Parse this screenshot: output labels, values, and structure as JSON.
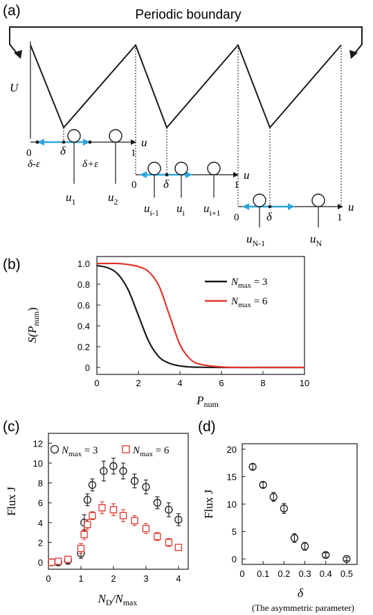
{
  "panel_a": {
    "label": "(a)",
    "title": "Periodic boundary",
    "ylabel": "U",
    "axis_u": "u",
    "zero": "0",
    "one": "1",
    "delta": "δ",
    "delta_minus": "δ-ε",
    "delta_plus": "δ+ε",
    "particles": [
      "u",
      "u",
      "u",
      "u",
      "u",
      "u",
      "u"
    ],
    "subscripts": [
      "1",
      "2",
      "i-1",
      "i",
      "i+1",
      "N-1",
      "N"
    ]
  },
  "panel_b": {
    "label": "(b)",
    "xlabel_main": "P",
    "xlabel_sub": "num",
    "ylabel_text": "S(P",
    "ylabel_sub": "num",
    "ylabel_close": ")",
    "legend": [
      "N",
      "N"
    ],
    "legend_sub": [
      "max",
      "max"
    ],
    "legend_val": [
      " = 3",
      " = 6"
    ]
  },
  "panel_c": {
    "label": "(c)",
    "ylabel": "Flux J",
    "xlabel_n1": "N",
    "xlabel_sub1": "D",
    "xlabel_slash": "/N",
    "xlabel_sub2": "max",
    "legend_n": [
      "N",
      "N"
    ],
    "legend_sub": [
      "max",
      "max"
    ],
    "legend_val": [
      " = 3",
      " = 6"
    ]
  },
  "panel_d": {
    "label": "(d)",
    "ylabel": "Flux J",
    "xlabel": "δ",
    "xnote": "(The asymmetric parameter)"
  },
  "colors": {
    "black": "#1a1a1a",
    "red": "#e0362c",
    "cyan": "#2ba6de"
  },
  "chart_data": [
    {
      "type": "line",
      "panel": "b",
      "x": [
        0,
        0.5,
        1,
        1.5,
        2,
        2.5,
        3,
        3.5,
        4,
        4.5,
        5,
        6,
        7,
        8,
        9,
        10
      ],
      "series": [
        {
          "name": "N_max = 3",
          "color": "#1a1a1a",
          "values": [
            0.98,
            0.96,
            0.9,
            0.75,
            0.5,
            0.25,
            0.1,
            0.04,
            0.015,
            0.005,
            0.002,
            0,
            0,
            0,
            0,
            0
          ]
        },
        {
          "name": "N_max = 6",
          "color": "#e0362c",
          "values": [
            1.0,
            1.0,
            1.0,
            0.99,
            0.97,
            0.92,
            0.78,
            0.5,
            0.22,
            0.08,
            0.03,
            0.005,
            0,
            0,
            0,
            0
          ]
        }
      ],
      "xlim": [
        0,
        10
      ],
      "ylim": [
        0,
        1.0
      ],
      "xticks": [
        "0",
        "2",
        "4",
        "6",
        "8",
        "10"
      ],
      "yticks": [
        "0",
        "0.2",
        "0.4",
        "0.6",
        "0.8",
        "1.0"
      ],
      "legend_position": "right"
    },
    {
      "type": "scatter",
      "panel": "c",
      "series": [
        {
          "name": "N_max = 3",
          "marker": "circle",
          "color": "#1a1a1a",
          "points": [
            [
              0.1,
              0,
              0.3
            ],
            [
              0.3,
              0,
              0.3
            ],
            [
              0.6,
              0.2,
              0.4
            ],
            [
              1.0,
              0.9,
              0.5
            ],
            [
              1.1,
              4.0,
              0.8
            ],
            [
              1.2,
              6.3,
              0.6
            ],
            [
              1.35,
              7.8,
              0.6
            ],
            [
              1.7,
              9.2,
              1.0
            ],
            [
              2.0,
              9.7,
              0.8
            ],
            [
              2.3,
              9.2,
              0.8
            ],
            [
              2.65,
              8.2,
              0.7
            ],
            [
              3.0,
              7.6,
              0.7
            ],
            [
              3.35,
              6.0,
              0.6
            ],
            [
              3.7,
              5.3,
              0.7
            ],
            [
              4.0,
              4.3,
              0.6
            ]
          ]
        },
        {
          "name": "N_max = 6",
          "marker": "square",
          "color": "#e0362c",
          "points": [
            [
              0.1,
              0,
              0.3
            ],
            [
              0.3,
              0.1,
              0.3
            ],
            [
              0.6,
              0.3,
              0.3
            ],
            [
              1.0,
              1.4,
              0.5
            ],
            [
              1.1,
              2.8,
              0.5
            ],
            [
              1.2,
              3.8,
              0.5
            ],
            [
              1.35,
              4.7,
              0.4
            ],
            [
              1.65,
              5.5,
              0.6
            ],
            [
              2.0,
              5.3,
              0.6
            ],
            [
              2.3,
              4.7,
              0.6
            ],
            [
              2.65,
              4.2,
              0.5
            ],
            [
              3.0,
              3.4,
              0.5
            ],
            [
              3.35,
              2.6,
              0.4
            ],
            [
              3.7,
              2.0,
              0.4
            ],
            [
              4.0,
              1.5,
              0.3
            ]
          ]
        }
      ],
      "xlim": [
        0,
        4.3
      ],
      "ylim": [
        -0.7,
        13
      ],
      "xticks": [
        "0",
        "1",
        "2",
        "3",
        "4"
      ],
      "yticks": [
        "0",
        "2",
        "4",
        "6",
        "8",
        "10",
        "12"
      ],
      "legend_position": "top"
    },
    {
      "type": "scatter",
      "panel": "d",
      "series": [
        {
          "name": "",
          "marker": "circle",
          "color": "#1a1a1a",
          "points": [
            [
              0.05,
              16.8,
              0.5
            ],
            [
              0.1,
              13.5,
              0.5
            ],
            [
              0.15,
              11.3,
              0.8
            ],
            [
              0.2,
              9.2,
              0.9
            ],
            [
              0.25,
              3.8,
              0.8
            ],
            [
              0.3,
              2.3,
              0.7
            ],
            [
              0.4,
              0.7,
              0.4
            ],
            [
              0.5,
              0.0,
              0.3
            ]
          ]
        }
      ],
      "xlim": [
        0,
        0.55
      ],
      "ylim": [
        -1,
        21
      ],
      "xticks": [
        "0",
        "0.1",
        "0.2",
        "0.3",
        "0.4",
        "0.5"
      ],
      "yticks": [
        "0",
        "5",
        "10",
        "15",
        "20"
      ]
    }
  ]
}
